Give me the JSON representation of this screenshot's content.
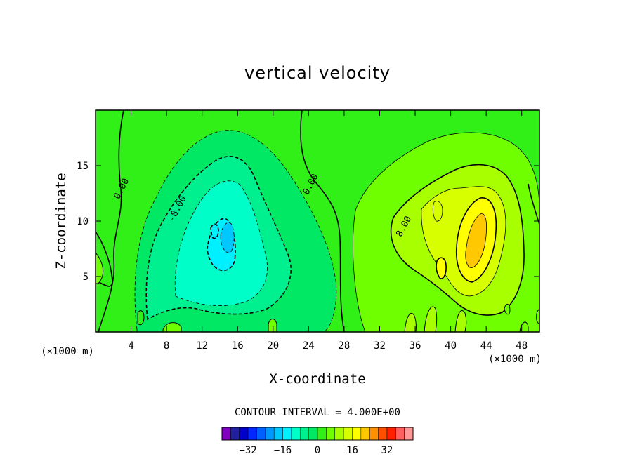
{
  "chart_data": {
    "type": "contour",
    "title": "vertical velocity",
    "xlabel": "X-coordinate",
    "ylabel": "Z-coordinate",
    "x_unit": "(×1000 m)",
    "y_unit": "(×1000 m)",
    "xlim": [
      0,
      50
    ],
    "ylim": [
      0,
      20
    ],
    "x_ticks": [
      4,
      8,
      12,
      16,
      20,
      24,
      28,
      32,
      36,
      40,
      44,
      48
    ],
    "y_ticks": [
      5,
      10,
      15
    ],
    "contour_interval_text": "CONTOUR INTERVAL = 4.000E+00",
    "contour_interval": 4,
    "contour_labels": [
      {
        "text": "0.00",
        "x": 3.2,
        "z": 12.8
      },
      {
        "text": "0.00",
        "x": 24.5,
        "z": 13.2
      },
      {
        "text": "-8.00",
        "x": 9.5,
        "z": 11.0
      },
      {
        "text": "8.00",
        "x": 35.0,
        "z": 9.4
      }
    ],
    "features": [
      {
        "kind": "downdraft",
        "x_center": 15,
        "z_center": 9,
        "min_value": -20
      },
      {
        "kind": "updraft",
        "x_center": 43,
        "z_center": 9,
        "max_value": 24
      }
    ],
    "colorbar": {
      "levels": [
        -40,
        -36,
        -32,
        -28,
        -24,
        -20,
        -16,
        -12,
        -8,
        -4,
        0,
        4,
        8,
        12,
        16,
        20,
        24,
        28,
        32,
        36,
        40
      ],
      "tick_labels": [
        "-32",
        "-16",
        "0",
        "16",
        "32"
      ],
      "colors": [
        "#8000c0",
        "#2020a0",
        "#0000c8",
        "#0028ff",
        "#0060ff",
        "#0098ff",
        "#00c8ff",
        "#00f0ff",
        "#00ffc8",
        "#00f090",
        "#00e864",
        "#30f018",
        "#70ff00",
        "#a8ff00",
        "#d8ff00",
        "#ffff00",
        "#ffc800",
        "#ff9000",
        "#ff5000",
        "#ff2000",
        "#ff6060",
        "#ff9898"
      ]
    }
  }
}
